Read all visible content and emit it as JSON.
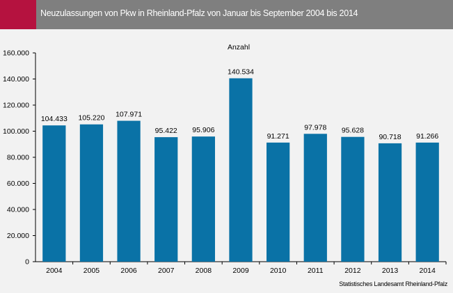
{
  "header": {
    "title": "Neuzulassungen von Pkw in Rheinland-Pfalz von Januar bis September 2004 bis 2014"
  },
  "colors": {
    "accent": "#b5123f",
    "header_bg": "#7f7f7f",
    "bar": "#0a72a6",
    "background": "#f2f2f2"
  },
  "source": "Statistisches Landesamt Rheinland-Pfalz",
  "chart_data": {
    "type": "bar",
    "title": "",
    "ylabel": "Anzahl",
    "xlabel": "",
    "categories": [
      "2004",
      "2005",
      "2006",
      "2007",
      "2008",
      "2009",
      "2010",
      "2011",
      "2012",
      "2013",
      "2014"
    ],
    "values": [
      104433,
      105220,
      107971,
      95422,
      95906,
      140534,
      91271,
      97978,
      95628,
      90718,
      91266
    ],
    "value_labels": [
      "104.433",
      "105.220",
      "107.971",
      "95.422",
      "95.906",
      "140.534",
      "91.271",
      "97.978",
      "95.628",
      "90.718",
      "91.266"
    ],
    "ylim": [
      0,
      160000
    ],
    "yticks": [
      0,
      20000,
      40000,
      60000,
      80000,
      100000,
      120000,
      140000,
      160000
    ],
    "ytick_labels": [
      "0",
      "20.000",
      "40.000",
      "60.000",
      "80.000",
      "100.000",
      "120.000",
      "140.000",
      "160.000"
    ],
    "grid": false,
    "legend": "none"
  }
}
